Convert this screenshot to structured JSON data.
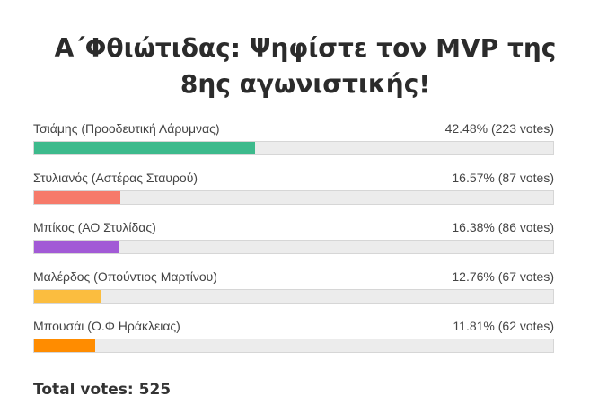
{
  "chart_data": {
    "type": "bar",
    "orientation": "horizontal",
    "title": "Α΄Φθιώτιδας: Ψηφίστε τον MVP της 8ης αγωνιστικής!",
    "categories": [
      "Τσιάμης (Προοδευτική Λάρυμνας)",
      "Στυλιανός (Αστέρας Σταυρού)",
      "Μπίκος (ΑΟ Στυλίδας)",
      "Μαλέρδος (Οπούντιος Μαρτίνου)",
      "Μπουσάι (Ο.Φ Ηράκλειας)"
    ],
    "values": [
      42.48,
      16.57,
      16.38,
      12.76,
      11.81
    ],
    "value_labels": [
      "42.48% (223 votes)",
      "16.57% (87 votes)",
      "16.38% (86 votes)",
      "12.76% (67 votes)",
      "11.81% (62 votes)"
    ],
    "colors": [
      "#3dba8c",
      "#f67a6a",
      "#a25ad6",
      "#fbbd3f",
      "#ff8c00"
    ],
    "xlim": [
      0,
      100
    ],
    "footer": "Total votes: 525"
  }
}
